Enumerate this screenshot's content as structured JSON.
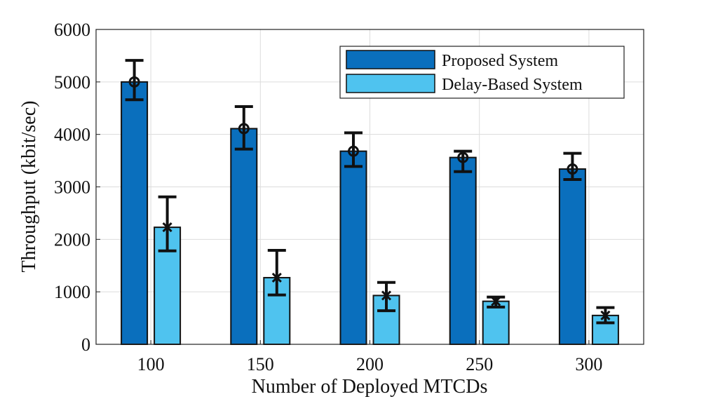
{
  "chart_data": {
    "type": "bar",
    "title": "",
    "xlabel": "Number of Deployed MTCDs",
    "ylabel": "Throughput (kbit/sec)",
    "categories": [
      "100",
      "150",
      "200",
      "250",
      "300"
    ],
    "ylim": [
      0,
      6000
    ],
    "yticks": [
      "0",
      "1000",
      "2000",
      "3000",
      "4000",
      "5000",
      "6000"
    ],
    "grid": true,
    "legend_position": "top-right",
    "series": [
      {
        "name": "Proposed System",
        "color": "#0a6fbd",
        "marker": "circle",
        "values": [
          5000,
          4110,
          3680,
          3560,
          3340
        ],
        "error_low": [
          4660,
          3720,
          3390,
          3290,
          3140
        ],
        "error_high": [
          5410,
          4530,
          4030,
          3680,
          3640
        ]
      },
      {
        "name": "Delay-Based System",
        "color": "#4fc3ef",
        "marker": "x",
        "values": [
          2230,
          1270,
          930,
          820,
          550
        ],
        "error_low": [
          1780,
          940,
          640,
          710,
          410
        ],
        "error_high": [
          2810,
          1790,
          1180,
          900,
          700
        ]
      }
    ]
  }
}
